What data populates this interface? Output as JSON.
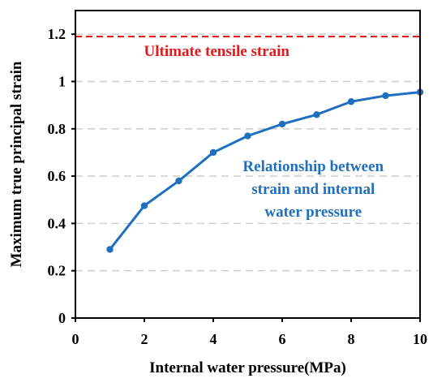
{
  "chart_data": {
    "type": "line",
    "title": "",
    "xlabel": "Internal water pressure(MPa)",
    "ylabel": "Maximum true principal strain",
    "xlim": [
      0,
      10
    ],
    "ylim": [
      0,
      1.3
    ],
    "x_ticks": [
      "0",
      "2",
      "4",
      "6",
      "8",
      "10"
    ],
    "y_ticks": [
      "0",
      "0.2",
      "0.4",
      "0.6",
      "0.8",
      "1",
      "1.2"
    ],
    "grid": "horizontal dashed",
    "series": [
      {
        "color": "#1f6fbf",
        "marker": "circle",
        "x": [
          1,
          2,
          3,
          4,
          5,
          6,
          7,
          8,
          9,
          10
        ],
        "y": [
          0.29,
          0.475,
          0.58,
          0.7,
          0.77,
          0.82,
          0.86,
          0.915,
          0.94,
          0.955
        ]
      }
    ],
    "reference_lines": [
      {
        "y": 1.19,
        "color": "#e31a1c",
        "style": "dashed",
        "label": "Ultimate tensile strain"
      }
    ],
    "annotations": [
      {
        "lines": [
          "Relationship between",
          "strain and internal",
          "water pressure"
        ],
        "color": "#1f6fbf"
      }
    ]
  }
}
